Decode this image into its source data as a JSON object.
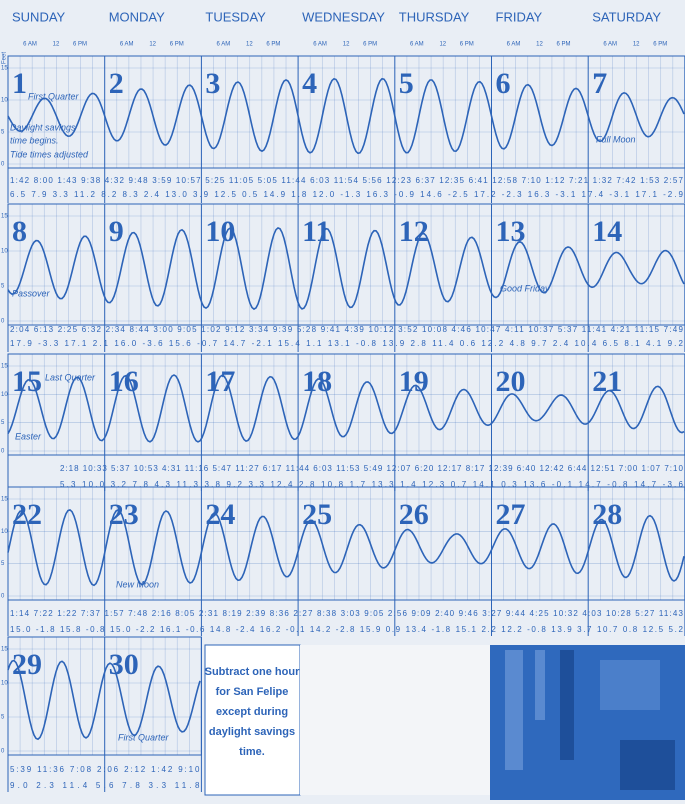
{
  "header": {
    "days": [
      "SUNDAY",
      "MONDAY",
      "TUESDAY",
      "WEDNESDAY",
      "THURSDAY",
      "FRIDAY",
      "SATURDAY"
    ],
    "hours": [
      "6 AM",
      "12",
      "6 PM"
    ],
    "feet_label": "Feet",
    "scale": [
      "15",
      "10",
      "5",
      "0"
    ]
  },
  "weeks": [
    {
      "days": [
        "1",
        "2",
        "3",
        "4",
        "5",
        "6",
        "7"
      ],
      "notes": [
        "First Quarter",
        "Daylight savings",
        "time begins.",
        "Tide times adjusted",
        "Full Moon"
      ],
      "times": "1:42 8:00 1:43 9:38 4:32 9:48 3:59 10:57 5:25 11:05 5:05 11:44 6:03 11:54 5:56 12:23 6:37 12:35 6:41 12:58 7:10 1:12 7:21 1:32 7:42 1:53 2:57",
      "heights": "6.5 7.9 3.3 11.2 8.2 8.3 2.4 13.0 3.9 12.5 0.5 14.9 1.8 12.0 -1.3 16.3 -0.9 14.6 -2.5 17.2 -2.3 16.3 -3.1 17.4 -3.1 17.1 -2.9"
    },
    {
      "days": [
        "8",
        "9",
        "10",
        "11",
        "12",
        "13",
        "14"
      ],
      "notes": [
        "Passover",
        "Good Friday"
      ],
      "times": "2:04 6:13 2:25 6:32 2:34 8:44 3:00 9:05 1:02 9:12 3:34 9:39 5:28 9:41 4:39 10:12 3:52 10:08 4:46 10:47 4:11 10:37 5:37 11:41 4:21 11:15 7:49",
      "heights": "17.9 -3.3 17.1 2.1 16.0 -3.6 15.6 -0.7 14.7 -2.1 15.4 1.1 13.1 -0.8 13.9 2.8 11.4 0.6 12.2 4.8 9.7 2.4 10.4 6.5 8.1 4.1 9.2"
    },
    {
      "days": [
        "15",
        "16",
        "17",
        "18",
        "19",
        "20",
        "21"
      ],
      "notes": [
        "Last Quarter",
        "Easter"
      ],
      "times": "2:18 10:33 5:37 10:53 4:31 11:16 5:47 11:27 6:17 11:44 6:03 11:53 5:49 12:07 6:20 12:17 8:17 12:39 6:40 12:42 6:44 12:51 7:00 1:07 7:10",
      "heights": "5.3 10.0 3.2 7.8 4.3 11.3 3.8 9.2 3.3 12.4 2.8 10.8 1.7 13.3 1.4 12.3 0.7 14.1 0.3 13.6 -0.1 14.7 -0.8 14.7 -3.6"
    },
    {
      "days": [
        "22",
        "23",
        "24",
        "25",
        "26",
        "27",
        "28"
      ],
      "notes": [
        "New Moon"
      ],
      "times": "1:14 7:22 1:22 7:37 1:57 7:48 2:16 8:05 2:31 8:19 2:39 8:36 2:27 8:38 3:03 9:05 2:56 9:09 2:40 9:46 3:27 9:44 4:25 10:32 4:03 10:28 5:27 11:43",
      "heights": "15.0 -1.8 15.8 -0.8 15.0 -2.2 16.1 -0.6 14.8 -2.4 16.2 -0.1 14.2 -2.8 15.9 0.9 13.4 -1.8 15.1 2.2 12.2 -0.8 13.9 3.7 10.7 0.8 12.5 5.2"
    },
    {
      "days": [
        "29",
        "30"
      ],
      "notes": [
        "First Quarter"
      ],
      "times": "5:39 11:36 7:08 2:06 2:12 1:42 9:10",
      "heights": "9.0 2.3 11.4 5.6 7.8 3.3 11.8"
    }
  ],
  "note": [
    "Subtract one hour",
    "for San Felipe",
    "except during",
    "daylight savings",
    "time."
  ]
}
